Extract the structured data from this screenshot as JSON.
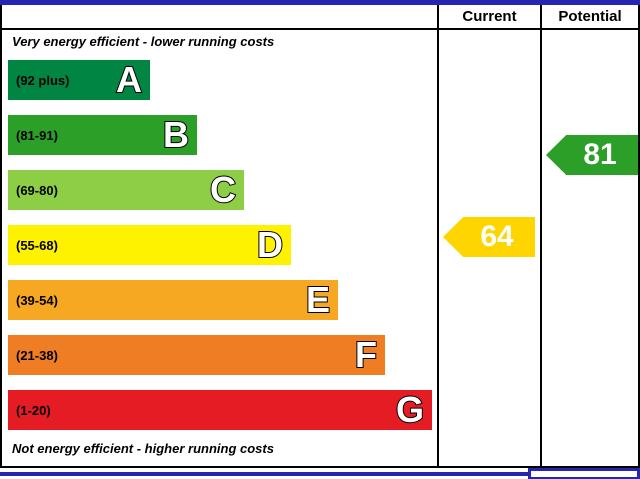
{
  "header": {
    "current": "Current",
    "potential": "Potential"
  },
  "captions": {
    "top": "Very energy efficient - lower running costs",
    "bottom": "Not energy efficient - higher running costs"
  },
  "colors": {
    "blue": "#2525b0",
    "line": "#000000"
  },
  "chart_data": {
    "type": "bar",
    "bands": [
      {
        "letter": "A",
        "range": "(92 plus)",
        "min": 92,
        "max": 100,
        "color": "#008542"
      },
      {
        "letter": "B",
        "range": "(81-91)",
        "min": 81,
        "max": 91,
        "color": "#2c9f29"
      },
      {
        "letter": "C",
        "range": "(69-80)",
        "min": 69,
        "max": 80,
        "color": "#8dce46"
      },
      {
        "letter": "D",
        "range": "(55-68)",
        "min": 55,
        "max": 68,
        "color": "#fff200"
      },
      {
        "letter": "E",
        "range": "(39-54)",
        "min": 39,
        "max": 54,
        "color": "#f7a822"
      },
      {
        "letter": "F",
        "range": "(21-38)",
        "min": 21,
        "max": 38,
        "color": "#ef7d23"
      },
      {
        "letter": "G",
        "range": "(1-20)",
        "min": 1,
        "max": 20,
        "color": "#e61c24"
      }
    ],
    "current": {
      "value": 64,
      "band": "D",
      "color": "#ffd500"
    },
    "potential": {
      "value": 81,
      "band": "B",
      "color": "#2c9f29"
    }
  }
}
